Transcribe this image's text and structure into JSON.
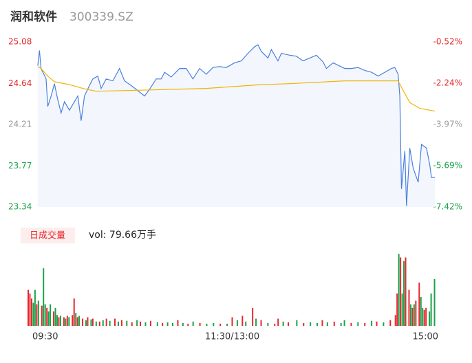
{
  "chart_data": {
    "type": "line",
    "title": "润和软件",
    "subtitle": "300339.SZ",
    "xlim": [
      0,
      240
    ],
    "xticks": [
      {
        "value": 0,
        "label": "09:30"
      },
      {
        "value": 120,
        "label": "11:30/13:00"
      },
      {
        "value": 240,
        "label": "15:00"
      }
    ],
    "ylim": [
      23.34,
      25.08
    ],
    "yticks": [
      25.08,
      24.64,
      24.21,
      23.77,
      23.34
    ],
    "ytick_colors": [
      "#e8262b",
      "#e8262b",
      "#999999",
      "#17a34a",
      "#17a34a"
    ],
    "y2lim": [
      -7.42,
      -0.52
    ],
    "y2ticks": [
      {
        "value": -0.52,
        "label": "-0.52%"
      },
      {
        "value": -2.24,
        "label": "-2.24%"
      },
      {
        "value": -3.97,
        "label": "-3.97%"
      },
      {
        "value": -5.69,
        "label": "-5.69%"
      },
      {
        "value": -7.42,
        "label": "-7.42%"
      }
    ],
    "series": [
      {
        "color": "#4a7fe0",
        "x": [
          2,
          3,
          4,
          7,
          8,
          10,
          12,
          14,
          16,
          18,
          21,
          24,
          26,
          28,
          30,
          33,
          35,
          38,
          40,
          43,
          47,
          51,
          54,
          58,
          61,
          66,
          69,
          73,
          76,
          78,
          82,
          87,
          91,
          95,
          99,
          103,
          107,
          111,
          115,
          120,
          124,
          128,
          132,
          134,
          136,
          140,
          142,
          146,
          148,
          153,
          157,
          161,
          165,
          169,
          173,
          175,
          179,
          186,
          190,
          194,
          198,
          202,
          206,
          210,
          214,
          216,
          218,
          219,
          220,
          222,
          223,
          225,
          227,
          230,
          232,
          235,
          237,
          238,
          240
        ],
        "values": [
          24.83,
          24.99,
          24.8,
          24.69,
          24.4,
          24.51,
          24.64,
          24.47,
          24.33,
          24.45,
          24.36,
          24.45,
          24.51,
          24.25,
          24.51,
          24.62,
          24.69,
          24.72,
          24.59,
          24.69,
          24.67,
          24.8,
          24.67,
          24.62,
          24.58,
          24.51,
          24.58,
          24.69,
          24.69,
          24.76,
          24.71,
          24.8,
          24.8,
          24.69,
          24.8,
          24.74,
          24.81,
          24.82,
          24.81,
          24.86,
          24.88,
          24.96,
          25.03,
          25.05,
          24.98,
          24.91,
          25.0,
          24.88,
          24.96,
          24.94,
          24.93,
          24.88,
          24.91,
          24.94,
          24.87,
          24.8,
          24.86,
          24.8,
          24.8,
          24.81,
          24.78,
          24.76,
          24.72,
          24.76,
          24.8,
          24.81,
          24.74,
          24.51,
          23.53,
          23.93,
          23.35,
          23.96,
          23.75,
          23.6,
          24.0,
          23.96,
          23.78,
          23.65,
          23.65
        ]
      },
      {
        "color": "#f0b400",
        "x": [
          2,
          4,
          8,
          12,
          21,
          29,
          37,
          62,
          103,
          136,
          153,
          186,
          218,
          221,
          225,
          231,
          240
        ],
        "values": [
          24.82,
          24.8,
          24.72,
          24.66,
          24.63,
          24.59,
          24.56,
          24.57,
          24.59,
          24.63,
          24.64,
          24.67,
          24.67,
          24.57,
          24.44,
          24.38,
          24.35
        ]
      }
    ],
    "volume": {
      "legend": "日成交量",
      "label": "vol: 79.66万手",
      "ylim": [
        0,
        105
      ],
      "series": [
        {
          "color": "#e8262b",
          "x": [
            0,
            1,
            2,
            5,
            8,
            11,
            15,
            18,
            21,
            23,
            26,
            27,
            29,
            32,
            35,
            38,
            42,
            46,
            51,
            55,
            61,
            66,
            72,
            79,
            88,
            94,
            101,
            113,
            120,
            126,
            132,
            137,
            145,
            147,
            153,
            162,
            173,
            180,
            190,
            198,
            205,
            213,
            216,
            217,
            219,
            222,
            224,
            226,
            228,
            230,
            233,
            234
          ],
          "values": [
            50,
            45,
            38,
            30,
            28,
            25,
            20,
            12,
            12,
            14,
            15,
            38,
            12,
            10,
            12,
            10,
            6,
            10,
            10,
            8,
            5,
            6,
            7,
            4,
            8,
            3,
            4,
            3,
            12,
            14,
            25,
            8,
            3,
            10,
            5,
            4,
            8,
            6,
            4,
            4,
            6,
            8,
            15,
            45,
            95,
            95,
            50,
            25,
            35,
            60,
            22,
            25
          ]
        },
        {
          "color": "#17a34a",
          "x": [
            3,
            4,
            6,
            9,
            10,
            12,
            13,
            16,
            17,
            19,
            22,
            24,
            28,
            30,
            34,
            37,
            40,
            44,
            48,
            53,
            58,
            64,
            69,
            76,
            82,
            85,
            91,
            97,
            105,
            109,
            117,
            123,
            128,
            134,
            141,
            150,
            158,
            166,
            170,
            176,
            184,
            186,
            194,
            202,
            209,
            218,
            220,
            221,
            225,
            227,
            231,
            232,
            236,
            237,
            239
          ],
          "values": [
            32,
            50,
            35,
            80,
            30,
            20,
            30,
            25,
            15,
            14,
            10,
            12,
            18,
            14,
            8,
            9,
            6,
            8,
            7,
            6,
            7,
            8,
            5,
            5,
            5,
            4,
            4,
            6,
            3,
            4,
            3,
            8,
            6,
            10,
            4,
            6,
            8,
            5,
            4,
            5,
            4,
            8,
            5,
            7,
            5,
            100,
            45,
            90,
            30,
            30,
            40,
            25,
            20,
            45,
            65
          ]
        }
      ]
    }
  }
}
